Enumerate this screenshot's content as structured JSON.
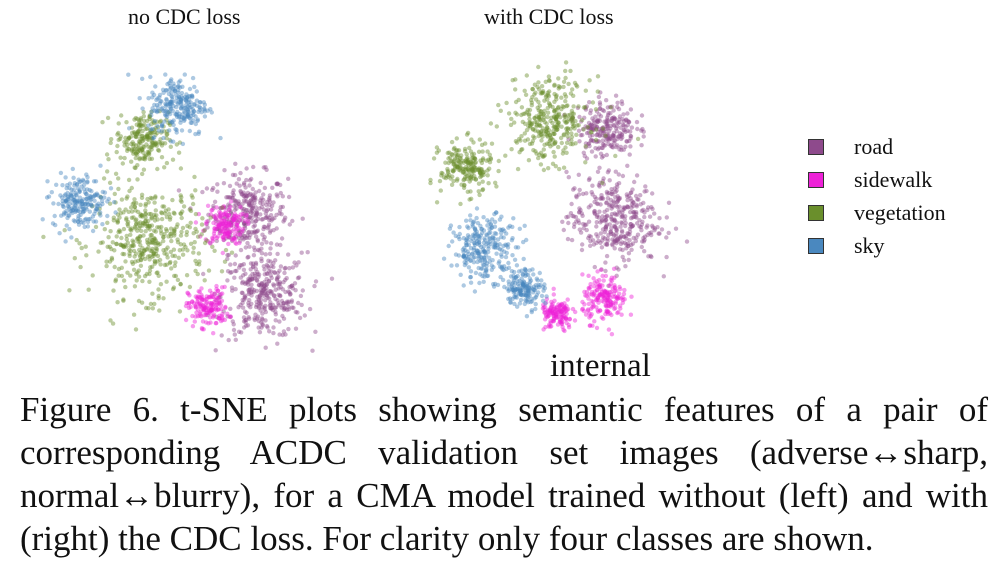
{
  "chart_data": [
    {
      "type": "scatter",
      "title": "no CDC loss",
      "series": [
        {
          "name": "road",
          "color": "#8e4a8c",
          "clusters": [
            {
              "cx": 0.32,
              "cy": -0.05,
              "spread": 0.12
            },
            {
              "cx": 0.42,
              "cy": -0.55,
              "spread": 0.13
            }
          ]
        },
        {
          "name": "sidewalk",
          "color": "#ee22d8",
          "clusters": [
            {
              "cx": 0.18,
              "cy": -0.12,
              "spread": 0.06
            },
            {
              "cx": 0.08,
              "cy": -0.62,
              "spread": 0.06
            }
          ]
        },
        {
          "name": "vegetation",
          "color": "#6a8f2c",
          "clusters": [
            {
              "cx": -0.28,
              "cy": -0.22,
              "spread": 0.17
            },
            {
              "cx": -0.32,
              "cy": 0.4,
              "spread": 0.08
            }
          ]
        },
        {
          "name": "sky",
          "color": "#4a88bf",
          "clusters": [
            {
              "cx": -0.1,
              "cy": 0.6,
              "spread": 0.09
            },
            {
              "cx": -0.7,
              "cy": 0.02,
              "spread": 0.08
            }
          ]
        }
      ]
    },
    {
      "type": "scatter",
      "title": "with CDC loss",
      "series": [
        {
          "name": "road",
          "color": "#8e4a8c",
          "clusters": [
            {
              "cx": 0.3,
              "cy": -0.12,
              "spread": 0.14
            },
            {
              "cx": 0.26,
              "cy": 0.45,
              "spread": 0.09
            }
          ]
        },
        {
          "name": "sidewalk",
          "color": "#ee22d8",
          "clusters": [
            {
              "cx": 0.25,
              "cy": -0.62,
              "spread": 0.07
            },
            {
              "cx": -0.05,
              "cy": -0.72,
              "spread": 0.05
            }
          ]
        },
        {
          "name": "vegetation",
          "color": "#6a8f2c",
          "clusters": [
            {
              "cx": -0.1,
              "cy": 0.5,
              "spread": 0.13
            },
            {
              "cx": -0.62,
              "cy": 0.2,
              "spread": 0.08
            }
          ]
        },
        {
          "name": "sky",
          "color": "#4a88bf",
          "clusters": [
            {
              "cx": -0.5,
              "cy": -0.3,
              "spread": 0.1
            },
            {
              "cx": -0.25,
              "cy": -0.55,
              "spread": 0.06
            }
          ]
        }
      ]
    }
  ],
  "legend": {
    "placement": "right",
    "items": [
      {
        "label": "road",
        "color": "#8e4a8c"
      },
      {
        "label": "sidewalk",
        "color": "#ee22d8"
      },
      {
        "label": "vegetation",
        "color": "#6a8f2c"
      },
      {
        "label": "sky",
        "color": "#4a88bf"
      }
    ]
  },
  "overlay_label": "internal",
  "caption": "Figure 6. t-SNE plots showing semantic features of a pair of corresponding ACDC validation set images (adverse↔sharp, normal↔blurry), for a CMA model trained without (left) and with (right) the CDC loss. For clarity only four classes are shown."
}
